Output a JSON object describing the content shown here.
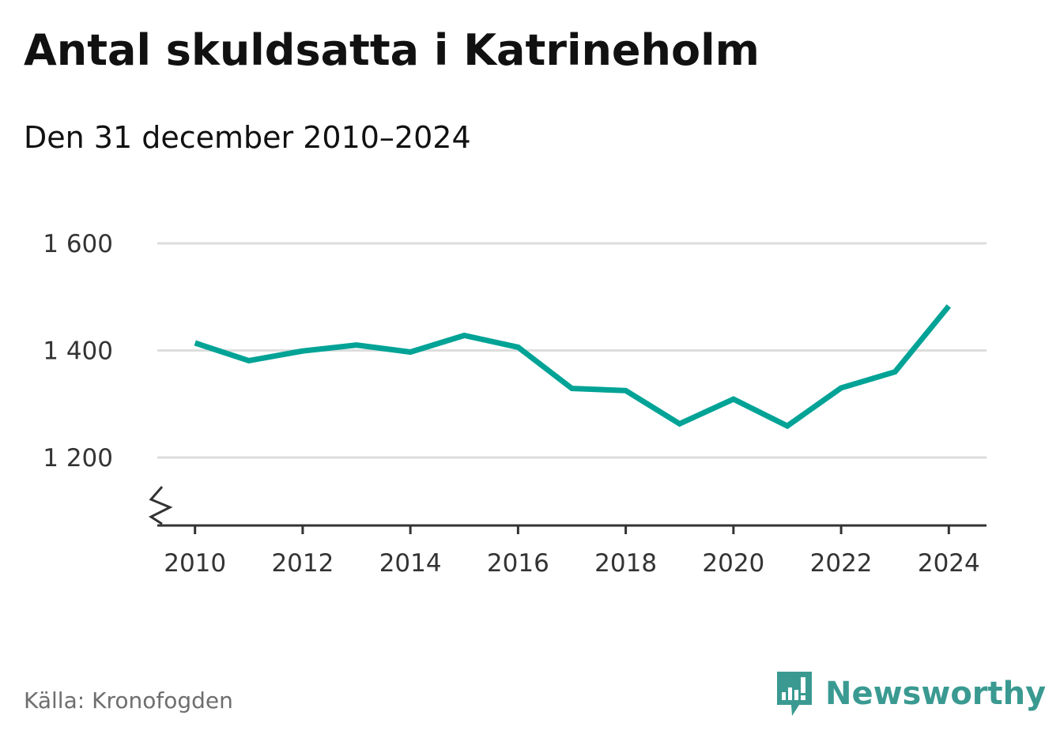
{
  "header": {
    "title": "Antal skuldsatta i Katrineholm",
    "subtitle": "Den 31 december 2010–2024"
  },
  "footer": {
    "source": "Källa: Kronofogden",
    "brand": "Newsworthy",
    "brand_icon": "bar-chart-speech-bubble-icon"
  },
  "colors": {
    "line": "#00a396",
    "grid": "#dddddd",
    "axis": "#333333",
    "brand": "#3a9a91"
  },
  "chart_data": {
    "type": "line",
    "title": "Antal skuldsatta i Katrineholm",
    "subtitle": "Den 31 december 2010–2024",
    "xlabel": "",
    "ylabel": "",
    "x": [
      2010,
      2011,
      2012,
      2013,
      2014,
      2015,
      2016,
      2017,
      2018,
      2019,
      2020,
      2021,
      2022,
      2023,
      2024
    ],
    "series": [
      {
        "values": [
          1414,
          1381,
          1399,
          1410,
          1397,
          1428,
          1406,
          1329,
          1325,
          1263,
          1309,
          1259,
          1330,
          1360,
          1483
        ]
      }
    ],
    "x_ticks": [
      2010,
      2012,
      2014,
      2016,
      2018,
      2020,
      2022,
      2024
    ],
    "x_tick_labels": [
      "2010",
      "2012",
      "2014",
      "2016",
      "2018",
      "2020",
      "2022",
      "2024"
    ],
    "y_ticks": [
      1200,
      1400,
      1600
    ],
    "y_tick_labels": [
      "1 200",
      "1 400",
      "1 600"
    ],
    "ylim": [
      1073,
      1600
    ],
    "xlim": [
      2009.3,
      2024.7
    ],
    "y_axis_break": true,
    "grid": true,
    "legend": "none"
  }
}
